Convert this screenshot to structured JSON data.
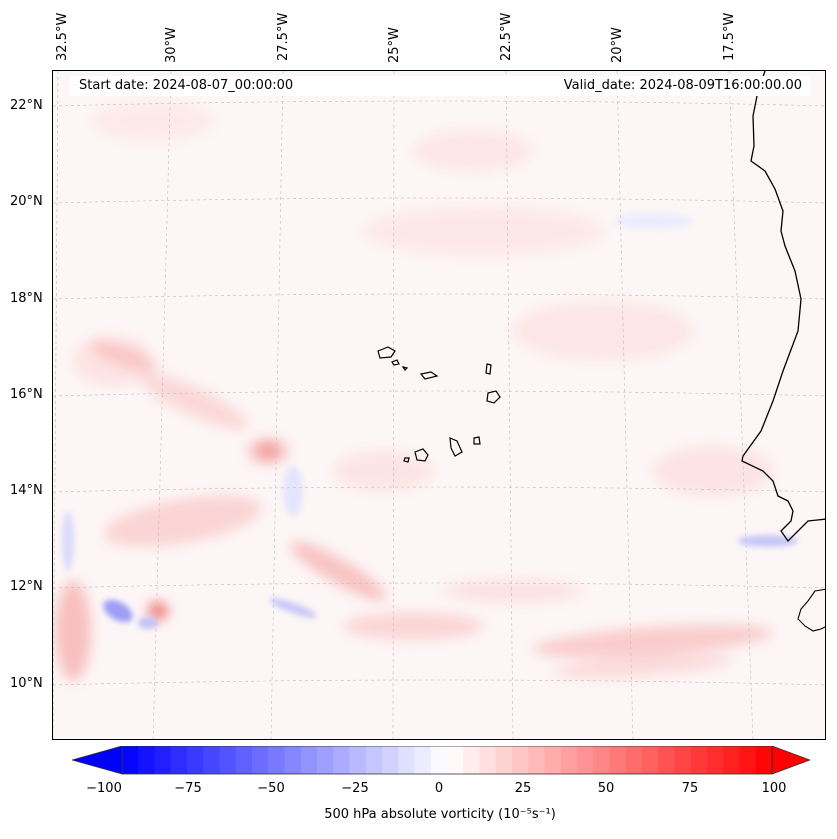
{
  "map": {
    "start_date_label": "Start date: 2024-08-07_00:00:00",
    "valid_date_label": "Valid_date: 2024-08-09T16:00:00.00",
    "longitude_labels": [
      "32.5°W",
      "30°W",
      "27.5°W",
      "25°W",
      "22.5°W",
      "20°W",
      "17.5°W"
    ],
    "latitude_labels": [
      "22°N",
      "20°N",
      "18°N",
      "16°N",
      "14°N",
      "12°N",
      "10°N"
    ],
    "region": "Cape Verde islands and West African coast",
    "colors": {
      "negative": "#0000ff",
      "positive": "#ff0000",
      "neutral": "#ffffff"
    }
  },
  "colorbar": {
    "ticks": [
      "−100",
      "−75",
      "−50",
      "−25",
      "0",
      "25",
      "50",
      "75",
      "100"
    ],
    "label": "500 hPa absolute vorticity (10$^{-5}$s$^{-1}$)",
    "label_display": "500 hPa absolute vorticity (10⁻⁵s⁻¹)",
    "range": [
      -100,
      100
    ]
  }
}
